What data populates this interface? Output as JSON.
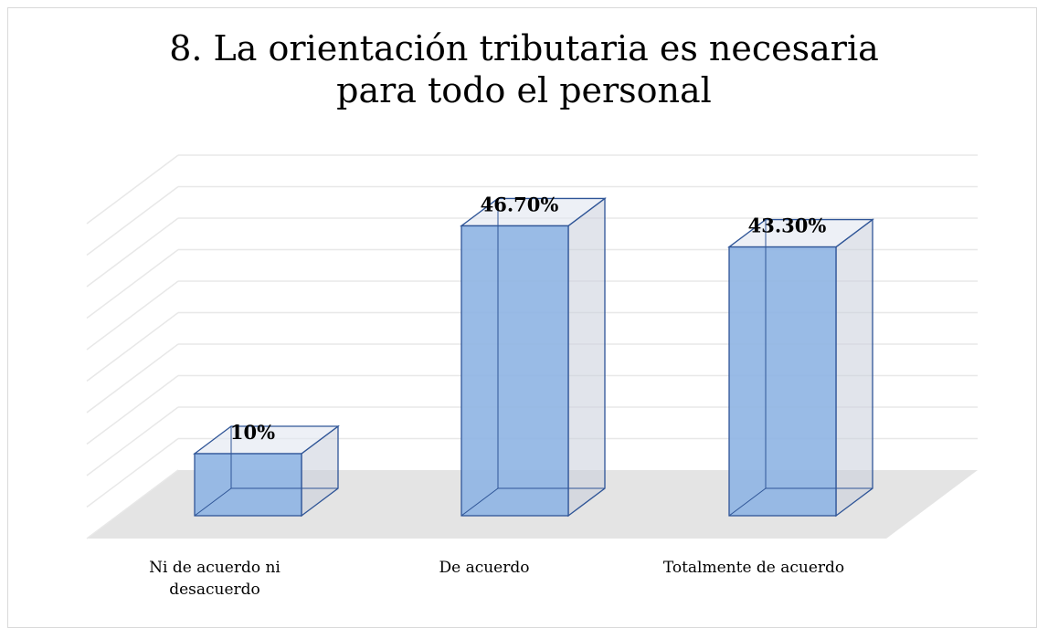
{
  "chart_data": {
    "type": "bar3d",
    "title": "8. La orientación tributaria es necesaria para todo el personal",
    "categories": [
      "Ni de acuerdo ni desacuerdo",
      "De acuerdo",
      "Totalmente de acuerdo"
    ],
    "values": [
      10,
      46.7,
      43.3
    ],
    "value_labels": [
      "10%",
      "46.70%",
      "43.30%"
    ],
    "color": "#8eb4e3",
    "ylim": [
      0,
      50
    ],
    "yticks": [
      0,
      5,
      10,
      15,
      20,
      25,
      30,
      35,
      40,
      45,
      50
    ],
    "grid": true
  }
}
